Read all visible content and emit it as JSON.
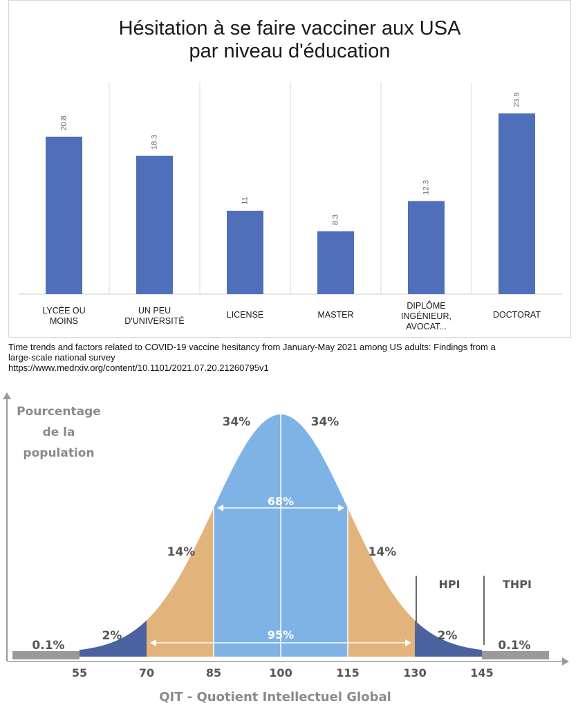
{
  "chart_data": [
    {
      "type": "bar",
      "title_line1": "Hésitation à se faire vacciner aux USA",
      "title_line2": "par niveau d'éducation",
      "categories": [
        [
          "LYCÉE OU",
          "MOINS"
        ],
        [
          "UN PEU",
          "D'UNIVERSITÉ"
        ],
        [
          "LICENSE"
        ],
        [
          "MASTER"
        ],
        [
          "DIPLÔME",
          "INGÉNIEUR,",
          "AVOCAT..."
        ],
        [
          "DOCTORAT"
        ]
      ],
      "values": [
        20.8,
        18.3,
        11,
        8.3,
        12.3,
        23.9
      ],
      "value_labels": [
        "20.8",
        "18.3",
        "11",
        "8.3",
        "12.3",
        "23.9"
      ],
      "ylim": [
        0,
        28
      ],
      "grid": "vertical separators",
      "bar_color": "#4f6fba"
    },
    {
      "type": "area",
      "ylabel": [
        "Pourcentage",
        "de la",
        "population"
      ],
      "xlabel": "QIT - Quotient Intellectuel Global",
      "x_ticks": [
        55,
        70,
        85,
        100,
        115,
        130,
        145
      ],
      "x_tick_labels": [
        "55",
        "70",
        "85",
        "100",
        "115",
        "130",
        "145"
      ],
      "mean": 100,
      "sd": 15,
      "regions": [
        {
          "range": [
            40,
            55
          ],
          "label": "0.1%",
          "color": "#9a9a9a"
        },
        {
          "range": [
            55,
            70
          ],
          "label": "2%",
          "color": "#4a62a0"
        },
        {
          "range": [
            70,
            85
          ],
          "label": "14%",
          "color": "#e2b47c"
        },
        {
          "range": [
            85,
            100
          ],
          "label": "34%",
          "color": "#7fb3e6"
        },
        {
          "range": [
            100,
            115
          ],
          "label": "34%",
          "color": "#7fb3e6"
        },
        {
          "range": [
            115,
            130
          ],
          "label": "14%",
          "color": "#e2b47c"
        },
        {
          "range": [
            130,
            145
          ],
          "label": "2%",
          "color": "#4a62a0"
        },
        {
          "range": [
            145,
            160
          ],
          "label": "0.1%",
          "color": "#9a9a9a"
        }
      ],
      "spans": [
        {
          "range": [
            85,
            115
          ],
          "label": "68%"
        },
        {
          "range": [
            70,
            130
          ],
          "label": "95%"
        }
      ],
      "zones": [
        {
          "from": 130,
          "to": 145,
          "label": "HPI"
        },
        {
          "from": 145,
          "to": 160,
          "label": "THPI"
        }
      ]
    }
  ],
  "source": {
    "line1": "Time trends and factors related to COVID-19 vaccine hesitancy from January-May 2021 among US adults: Findings from a",
    "line2": "large-scale national survey",
    "line3": "https://www.medrxiv.org/content/10.1101/2021.07.20.21260795v1"
  }
}
